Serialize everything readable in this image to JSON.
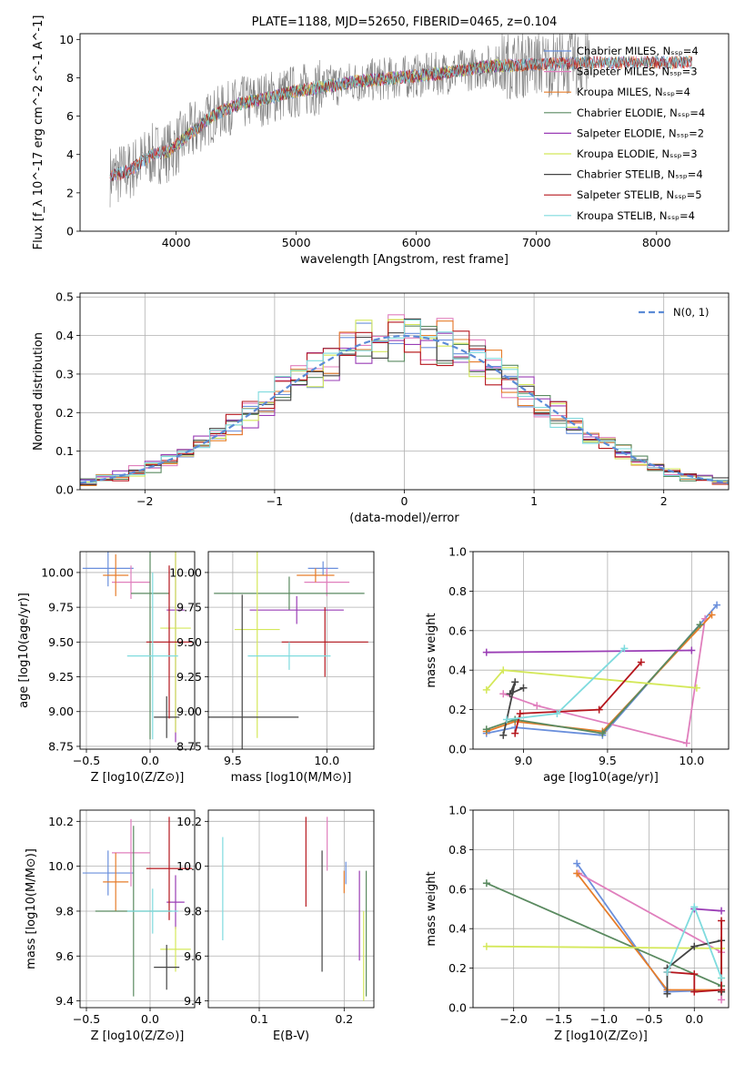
{
  "chart_data": [
    {
      "id": "spectrum",
      "type": "line",
      "title": "PLATE=1188, MJD=52650, FIBERID=0465, z=0.104",
      "xlabel": "wavelength [Angstrom, rest frame]",
      "ylabel": "Flux [f_λ 10^-17 erg cm^-2 s^-1 A^-1]",
      "xlim": [
        3200,
        8600
      ],
      "ylim": [
        0,
        10.3
      ],
      "xticks": [
        4000,
        5000,
        6000,
        7000,
        8000
      ],
      "yticks": [
        0,
        2,
        4,
        6,
        8,
        10
      ],
      "grid": false,
      "legend_position": "top-right",
      "observed": {
        "color": "#808080",
        "x_range": [
          3450,
          7450
        ],
        "continuum": [
          [
            3450,
            2.9
          ],
          [
            3600,
            3.1
          ],
          [
            3800,
            4.0
          ],
          [
            3950,
            4.2
          ],
          [
            4100,
            5.0
          ],
          [
            4300,
            6.0
          ],
          [
            4500,
            6.6
          ],
          [
            4800,
            7.0
          ],
          [
            5000,
            7.3
          ],
          [
            5200,
            7.5
          ],
          [
            5500,
            7.8
          ],
          [
            6000,
            8.1
          ],
          [
            6300,
            8.3
          ],
          [
            6600,
            8.6
          ],
          [
            7000,
            8.7
          ],
          [
            7450,
            8.8
          ]
        ]
      },
      "series": [
        {
          "name": "Chabrier MILES, N_SSP=4",
          "color": "#6a8fdc",
          "x_range": [
            3450,
            8300
          ]
        },
        {
          "name": "Salpeter MILES, N_SSP=3",
          "color": "#e07fbd",
          "x_range": [
            3450,
            8300
          ]
        },
        {
          "name": "Kroupa MILES, N_SSP=4",
          "color": "#e67d2a",
          "x_range": [
            3450,
            8300
          ]
        },
        {
          "name": "Chabrier ELODIE, N_SSP=4",
          "color": "#5a8a60",
          "x_range": [
            3900,
            6800
          ]
        },
        {
          "name": "Salpeter ELODIE, N_SSP=2",
          "color": "#9a3db5",
          "x_range": [
            3900,
            6800
          ]
        },
        {
          "name": "Kroupa ELODIE, N_SSP=3",
          "color": "#d4e85a",
          "x_range": [
            3900,
            6800
          ]
        },
        {
          "name": "Chabrier STELIB, N_SSP=4",
          "color": "#444444",
          "x_range": [
            3450,
            8300
          ]
        },
        {
          "name": "Salpeter STELIB, N_SSP=5",
          "color": "#b5161d",
          "x_range": [
            3450,
            8300
          ]
        },
        {
          "name": "Kroupa STELIB, N_SSP=4",
          "color": "#7fdbde",
          "x_range": [
            3450,
            8300
          ]
        }
      ]
    },
    {
      "id": "residuals",
      "type": "histogram",
      "xlabel": "(data-model)/error",
      "ylabel": "Normed distribution",
      "xlim": [
        -2.5,
        2.5
      ],
      "ylim": [
        0,
        0.51
      ],
      "xticks": [
        -2,
        -1,
        0,
        1,
        2
      ],
      "yticks": [
        0.0,
        0.1,
        0.2,
        0.3,
        0.4,
        0.5
      ],
      "grid": true,
      "bin_width": 0.125,
      "legend_position": "top-right",
      "reference_curve": {
        "label": "N(0, 1)",
        "color": "#5b8bd6",
        "style": "dashed"
      },
      "series_colors": [
        "#6a8fdc",
        "#e07fbd",
        "#e67d2a",
        "#5a8a60",
        "#9a3db5",
        "#d4e85a",
        "#444444",
        "#b5161d",
        "#7fdbde"
      ]
    },
    {
      "id": "age_vs_Z",
      "type": "errorbar",
      "xlabel": "Z [log10(Z/Z⊙)]",
      "ylabel": "age [log10(age/yr)]",
      "xlim": [
        -0.55,
        0.35
      ],
      "ylim": [
        8.73,
        10.15
      ],
      "xticks": [
        -0.5,
        0.0
      ],
      "yticks": [
        8.75,
        9.0,
        9.25,
        9.5,
        9.75,
        10.0
      ],
      "grid": true,
      "points": [
        {
          "color": "#6a8fdc",
          "x": -0.33,
          "y": 10.03,
          "xerr": 0.2,
          "yerr": 0.13
        },
        {
          "color": "#e07fbd",
          "x": -0.15,
          "y": 9.93,
          "xerr": 0.15,
          "yerr": 0.12
        },
        {
          "color": "#e67d2a",
          "x": -0.27,
          "y": 9.98,
          "xerr": 0.1,
          "yerr": 0.15
        },
        {
          "color": "#5a8a60",
          "x": 0.0,
          "y": 9.85,
          "xerr": 0.15,
          "yerr": 1.05
        },
        {
          "color": "#9a3db5",
          "x": 0.2,
          "y": 9.73,
          "xerr": 0.07,
          "yerr": 0.95
        },
        {
          "color": "#d4e85a",
          "x": 0.2,
          "y": 9.6,
          "xerr": 0.12,
          "yerr": 0.75
        },
        {
          "color": "#444444",
          "x": 0.13,
          "y": 8.96,
          "xerr": 0.1,
          "yerr": 0.15
        },
        {
          "color": "#b5161d",
          "x": 0.15,
          "y": 9.5,
          "xerr": 0.18,
          "yerr": 0.55
        },
        {
          "color": "#7fdbde",
          "x": 0.02,
          "y": 9.4,
          "xerr": 0.2,
          "yerr": 0.6
        }
      ]
    },
    {
      "id": "age_vs_mass",
      "type": "errorbar",
      "xlabel": "mass [log10(M/M⊙)]",
      "ylabel": "",
      "xlim": [
        9.37,
        10.25
      ],
      "ylim": [
        8.73,
        10.15
      ],
      "xticks": [
        9.5,
        10.0
      ],
      "yticks": [
        8.75,
        9.0,
        9.25,
        9.5,
        9.75,
        10.0
      ],
      "grid": true,
      "points": [
        {
          "color": "#6a8fdc",
          "x": 9.98,
          "y": 10.03,
          "xerr": 0.08,
          "yerr": 0.05
        },
        {
          "color": "#e07fbd",
          "x": 10.0,
          "y": 9.93,
          "xerr": 0.12,
          "yerr": 0.1
        },
        {
          "color": "#e67d2a",
          "x": 9.94,
          "y": 9.98,
          "xerr": 0.1,
          "yerr": 0.05
        },
        {
          "color": "#5a8a60",
          "x": 9.8,
          "y": 9.85,
          "xerr": 0.4,
          "yerr": 0.12
        },
        {
          "color": "#9a3db5",
          "x": 9.84,
          "y": 9.73,
          "xerr": 0.25,
          "yerr": 0.1
        },
        {
          "color": "#d4e85a",
          "x": 9.63,
          "y": 9.59,
          "xerr": 0.12,
          "yerr": 0.78
        },
        {
          "color": "#444444",
          "x": 9.55,
          "y": 8.96,
          "xerr": 0.3,
          "yerr": 0.88
        },
        {
          "color": "#b5161d",
          "x": 9.99,
          "y": 9.5,
          "xerr": 0.23,
          "yerr": 0.25
        },
        {
          "color": "#7fdbde",
          "x": 9.8,
          "y": 9.4,
          "xerr": 0.22,
          "yerr": 0.1
        }
      ]
    },
    {
      "id": "weight_vs_age",
      "type": "line",
      "xlabel": "age [log10(age/yr)]",
      "ylabel": "mass weight",
      "xlim": [
        8.7,
        10.22
      ],
      "ylim": [
        0,
        1.0
      ],
      "xticks": [
        9.0,
        9.5,
        10.0
      ],
      "yticks": [
        0.0,
        0.2,
        0.4,
        0.6,
        0.8,
        1.0
      ],
      "grid": true,
      "series": [
        {
          "color": "#6a8fdc",
          "points": [
            [
              8.78,
              0.08
            ],
            [
              8.95,
              0.11
            ],
            [
              9.47,
              0.07
            ],
            [
              10.15,
              0.73
            ]
          ]
        },
        {
          "color": "#e07fbd",
          "points": [
            [
              8.88,
              0.28
            ],
            [
              9.08,
              0.22
            ],
            [
              9.97,
              0.03
            ],
            [
              10.08,
              0.66
            ]
          ]
        },
        {
          "color": "#e67d2a",
          "points": [
            [
              8.78,
              0.09
            ],
            [
              8.95,
              0.14
            ],
            [
              9.47,
              0.09
            ],
            [
              10.12,
              0.68
            ]
          ]
        },
        {
          "color": "#5a8a60",
          "points": [
            [
              8.78,
              0.1
            ],
            [
              8.95,
              0.15
            ],
            [
              9.47,
              0.08
            ],
            [
              10.05,
              0.63
            ]
          ]
        },
        {
          "color": "#9a3db5",
          "points": [
            [
              8.78,
              0.49
            ],
            [
              10.0,
              0.5
            ]
          ]
        },
        {
          "color": "#d4e85a",
          "points": [
            [
              8.78,
              0.3
            ],
            [
              8.88,
              0.4
            ],
            [
              10.03,
              0.31
            ]
          ]
        },
        {
          "color": "#444444",
          "points": [
            [
              8.88,
              0.07
            ],
            [
              8.95,
              0.34
            ],
            [
              8.92,
              0.28
            ],
            [
              9.0,
              0.31
            ]
          ]
        },
        {
          "color": "#b5161d",
          "points": [
            [
              8.95,
              0.08
            ],
            [
              8.98,
              0.18
            ],
            [
              9.45,
              0.2
            ],
            [
              9.7,
              0.44
            ]
          ]
        },
        {
          "color": "#7fdbde",
          "points": [
            [
              8.9,
              0.15
            ],
            [
              9.2,
              0.18
            ],
            [
              9.6,
              0.51
            ]
          ]
        }
      ]
    },
    {
      "id": "mass_vs_Z",
      "type": "errorbar",
      "xlabel": "Z [log10(Z/Z⊙)]",
      "ylabel": "mass [log10(M/M⊙)]",
      "xlim": [
        -0.55,
        0.35
      ],
      "ylim": [
        9.37,
        10.25
      ],
      "xticks": [
        -0.5,
        0.0
      ],
      "yticks": [
        9.4,
        9.6,
        9.8,
        10.0,
        10.2
      ],
      "grid": true,
      "points": [
        {
          "color": "#6a8fdc",
          "x": -0.33,
          "y": 9.97,
          "xerr": 0.2,
          "yerr": 0.1
        },
        {
          "color": "#e07fbd",
          "x": -0.15,
          "y": 10.06,
          "xerr": 0.15,
          "yerr": 0.15
        },
        {
          "color": "#e67d2a",
          "x": -0.27,
          "y": 9.93,
          "xerr": 0.1,
          "yerr": 0.13
        },
        {
          "color": "#5a8a60",
          "x": -0.13,
          "y": 9.8,
          "xerr": 0.3,
          "yerr": 0.38
        },
        {
          "color": "#9a3db5",
          "x": 0.2,
          "y": 9.84,
          "xerr": 0.07,
          "yerr": 0.12
        },
        {
          "color": "#d4e85a",
          "x": 0.2,
          "y": 9.63,
          "xerr": 0.12,
          "yerr": 0.1
        },
        {
          "color": "#444444",
          "x": 0.13,
          "y": 9.55,
          "xerr": 0.1,
          "yerr": 0.1
        },
        {
          "color": "#b5161d",
          "x": 0.15,
          "y": 9.99,
          "xerr": 0.18,
          "yerr": 0.23
        },
        {
          "color": "#7fdbde",
          "x": 0.02,
          "y": 9.8,
          "xerr": 0.2,
          "yerr": 0.1
        }
      ]
    },
    {
      "id": "mass_vs_ebv",
      "type": "errorbar",
      "xlabel": "E(B-V)",
      "ylabel": "",
      "xlim": [
        0.04,
        0.235
      ],
      "ylim": [
        9.37,
        10.25
      ],
      "xticks": [
        0.1,
        0.2
      ],
      "yticks": [
        9.4,
        9.6,
        9.8,
        10.0,
        10.2
      ],
      "grid": true,
      "points": [
        {
          "color": "#7fdbde",
          "x": 0.057,
          "y": 9.9,
          "xerr": 0,
          "yerr": 0.23
        },
        {
          "color": "#b5161d",
          "x": 0.155,
          "y": 10.02,
          "xerr": 0,
          "yerr": 0.2
        },
        {
          "color": "#444444",
          "x": 0.174,
          "y": 9.8,
          "xerr": 0,
          "yerr": 0.27
        },
        {
          "color": "#e07fbd",
          "x": 0.18,
          "y": 10.1,
          "xerr": 0,
          "yerr": 0.12
        },
        {
          "color": "#e67d2a",
          "x": 0.2,
          "y": 9.93,
          "xerr": 0,
          "yerr": 0.05
        },
        {
          "color": "#6a8fdc",
          "x": 0.202,
          "y": 9.97,
          "xerr": 0,
          "yerr": 0.05
        },
        {
          "color": "#9a3db5",
          "x": 0.218,
          "y": 9.78,
          "xerr": 0,
          "yerr": 0.2
        },
        {
          "color": "#d4e85a",
          "x": 0.223,
          "y": 9.6,
          "xerr": 0,
          "yerr": 0.2
        },
        {
          "color": "#5a8a60",
          "x": 0.226,
          "y": 9.7,
          "xerr": 0,
          "yerr": 0.28
        }
      ]
    },
    {
      "id": "weight_vs_Z",
      "type": "line",
      "xlabel": "Z [log10(Z/Z⊙)]",
      "ylabel": "mass weight",
      "xlim": [
        -2.45,
        0.38
      ],
      "ylim": [
        0,
        1.0
      ],
      "xticks": [
        -2.0,
        -1.5,
        -1.0,
        -0.5,
        0.0
      ],
      "yticks": [
        0.0,
        0.2,
        0.4,
        0.6,
        0.8,
        1.0
      ],
      "grid": true,
      "series": [
        {
          "color": "#6a8fdc",
          "points": [
            [
              -1.3,
              0.73
            ],
            [
              -0.3,
              0.08
            ],
            [
              0.3,
              0.09
            ]
          ]
        },
        {
          "color": "#e07fbd",
          "points": [
            [
              -1.28,
              0.68
            ],
            [
              0.3,
              0.28
            ],
            [
              0.3,
              0.04
            ]
          ]
        },
        {
          "color": "#e67d2a",
          "points": [
            [
              -1.3,
              0.68
            ],
            [
              -0.3,
              0.09
            ],
            [
              0.3,
              0.09
            ]
          ]
        },
        {
          "color": "#5a8a60",
          "points": [
            [
              -2.3,
              0.63
            ],
            [
              0.3,
              0.11
            ],
            [
              0.3,
              0.08
            ]
          ]
        },
        {
          "color": "#9a3db5",
          "points": [
            [
              0.0,
              0.5
            ],
            [
              0.3,
              0.49
            ]
          ]
        },
        {
          "color": "#d4e85a",
          "points": [
            [
              -2.3,
              0.31
            ],
            [
              0.3,
              0.3
            ],
            [
              0.3,
              0.15
            ]
          ]
        },
        {
          "color": "#444444",
          "points": [
            [
              -0.3,
              0.07
            ],
            [
              -0.3,
              0.2
            ],
            [
              0.0,
              0.31
            ],
            [
              0.3,
              0.34
            ],
            [
              0.3,
              0.08
            ]
          ]
        },
        {
          "color": "#b5161d",
          "points": [
            [
              -0.3,
              0.18
            ],
            [
              0.0,
              0.17
            ],
            [
              0.0,
              0.08
            ],
            [
              0.3,
              0.09
            ],
            [
              0.3,
              0.44
            ]
          ]
        },
        {
          "color": "#7fdbde",
          "points": [
            [
              -0.3,
              0.18
            ],
            [
              0.0,
              0.51
            ],
            [
              0.3,
              0.15
            ]
          ]
        }
      ]
    }
  ]
}
